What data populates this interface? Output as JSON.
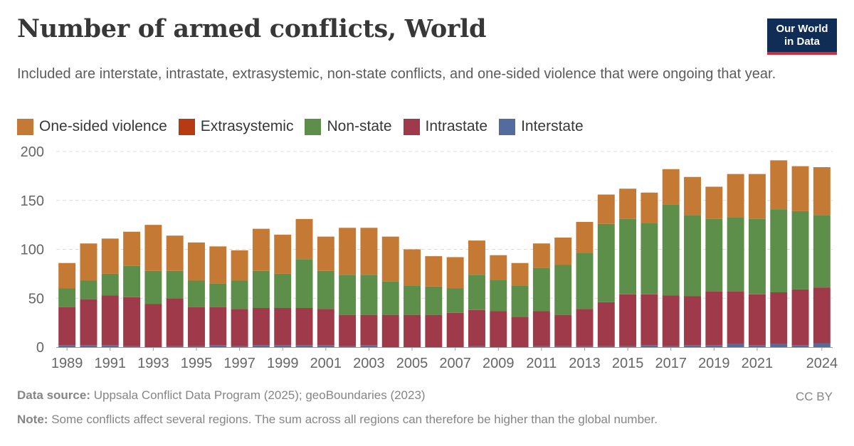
{
  "header": {
    "title": "Number of armed conflicts, World",
    "subtitle": "Included are interstate, intrastate, extrasystemic, non-state conflicts, and one-sided violence that were ongoing that year.",
    "logo_line1": "Our World",
    "logo_line2": "in Data"
  },
  "colors": {
    "one_sided": "#c47a35",
    "extrasystemic": "#b83a12",
    "non_state": "#5e8f4a",
    "intrastate": "#9e3a4a",
    "interstate": "#536c9e",
    "grid": "#dddddd",
    "axis": "#999999"
  },
  "chart_data": {
    "type": "bar",
    "stacked": true,
    "title": "Number of armed conflicts, World",
    "ylim": [
      0,
      200
    ],
    "yticks": [
      0,
      50,
      100,
      150,
      200
    ],
    "xtick_labels": [
      "1989",
      "1991",
      "1993",
      "1995",
      "1997",
      "1999",
      "2001",
      "2003",
      "2005",
      "2007",
      "2009",
      "2011",
      "2013",
      "2015",
      "2017",
      "2019",
      "2021",
      "2024"
    ],
    "grid": true,
    "legend_position": "top",
    "categories": [
      "1989",
      "1990",
      "1991",
      "1992",
      "1993",
      "1994",
      "1995",
      "1996",
      "1997",
      "1998",
      "1999",
      "2000",
      "2001",
      "2002",
      "2003",
      "2004",
      "2005",
      "2006",
      "2007",
      "2008",
      "2009",
      "2010",
      "2011",
      "2012",
      "2013",
      "2014",
      "2015",
      "2016",
      "2017",
      "2018",
      "2019",
      "2020",
      "2021",
      "2022",
      "2023",
      "2024"
    ],
    "series": [
      {
        "name": "Interstate",
        "color_key": "interstate",
        "values": [
          2,
          2,
          2,
          1,
          0,
          1,
          1,
          2,
          1,
          2,
          2,
          2,
          2,
          1,
          2,
          0,
          0,
          0,
          0,
          1,
          0,
          0,
          1,
          1,
          1,
          1,
          1,
          2,
          1,
          2,
          2,
          3,
          2,
          3,
          2,
          4
        ]
      },
      {
        "name": "Intrastate",
        "color_key": "intrastate",
        "values": [
          39,
          47,
          51,
          50,
          44,
          49,
          40,
          39,
          38,
          38,
          38,
          38,
          37,
          32,
          31,
          33,
          33,
          33,
          35,
          37,
          37,
          31,
          36,
          32,
          38,
          45,
          53,
          52,
          52,
          50,
          55,
          54,
          52,
          53,
          57,
          57
        ]
      },
      {
        "name": "Extrasystemic",
        "color_key": "extrasystemic",
        "values": [
          0,
          0,
          0,
          0,
          0,
          0,
          0,
          0,
          0,
          0,
          0,
          0,
          0,
          0,
          0,
          0,
          0,
          0,
          0,
          0,
          0,
          0,
          0,
          0,
          0,
          0,
          0,
          0,
          0,
          0,
          0,
          0,
          0,
          0,
          0,
          0
        ]
      },
      {
        "name": "Non-state",
        "color_key": "non_state",
        "values": [
          19,
          19,
          22,
          32,
          34,
          28,
          27,
          24,
          29,
          38,
          35,
          50,
          39,
          41,
          41,
          34,
          30,
          29,
          25,
          36,
          32,
          32,
          44,
          51,
          57,
          80,
          77,
          73,
          93,
          83,
          74,
          76,
          77,
          85,
          80,
          74
        ]
      },
      {
        "name": "One-sided violence",
        "color_key": "one_sided",
        "values": [
          26,
          38,
          36,
          35,
          47,
          36,
          39,
          38,
          31,
          43,
          40,
          41,
          35,
          48,
          48,
          46,
          37,
          31,
          32,
          35,
          25,
          23,
          25,
          28,
          32,
          30,
          31,
          31,
          36,
          39,
          33,
          44,
          46,
          50,
          46,
          49
        ]
      }
    ]
  },
  "legend": [
    {
      "label": "One-sided violence",
      "color_key": "one_sided"
    },
    {
      "label": "Extrasystemic",
      "color_key": "extrasystemic"
    },
    {
      "label": "Non-state",
      "color_key": "non_state"
    },
    {
      "label": "Intrastate",
      "color_key": "intrastate"
    },
    {
      "label": "Interstate",
      "color_key": "interstate"
    }
  ],
  "footer": {
    "source_label": "Data source:",
    "source_text": "Uppsala Conflict Data Program (2025); geoBoundaries (2023)",
    "license": "CC BY",
    "note_label": "Note:",
    "note_text": "Some conflicts affect several regions. The sum across all regions can therefore be higher than the global number."
  }
}
